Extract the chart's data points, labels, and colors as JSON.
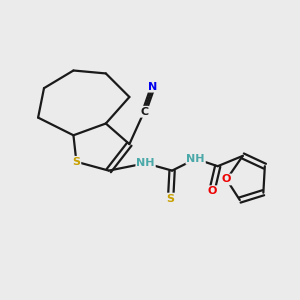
{
  "background_color": "#ebebeb",
  "bond_color": "#1a1a1a",
  "atom_colors": {
    "S": "#c8a000",
    "N": "#0000ee",
    "O": "#ee0000",
    "C": "#1a1a1a",
    "H": "#4aa8a8"
  },
  "figsize": [
    3.0,
    3.0
  ],
  "dpi": 100,
  "lw": 1.6,
  "fontsize": 9
}
